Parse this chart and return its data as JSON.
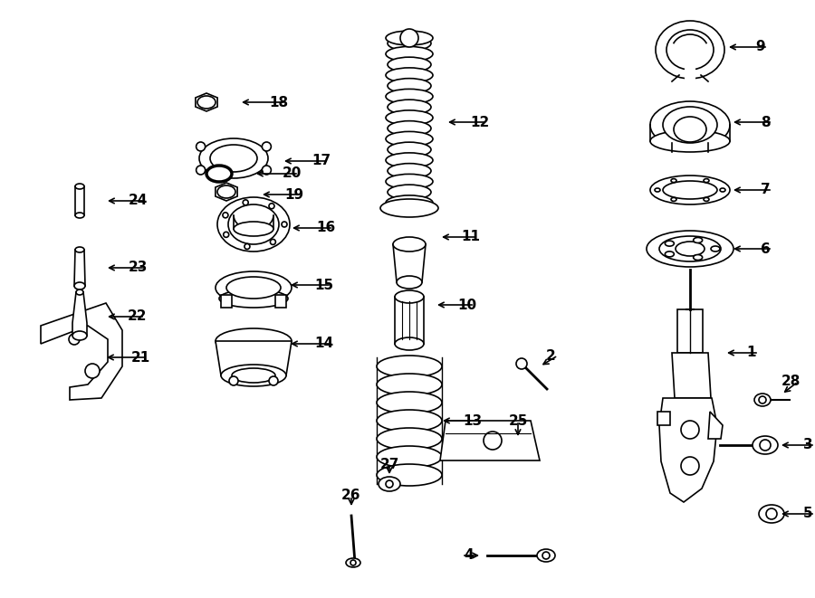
{
  "background_color": "#ffffff",
  "line_color": "#000000",
  "fig_width": 9.0,
  "fig_height": 6.61,
  "dpi": 100
}
